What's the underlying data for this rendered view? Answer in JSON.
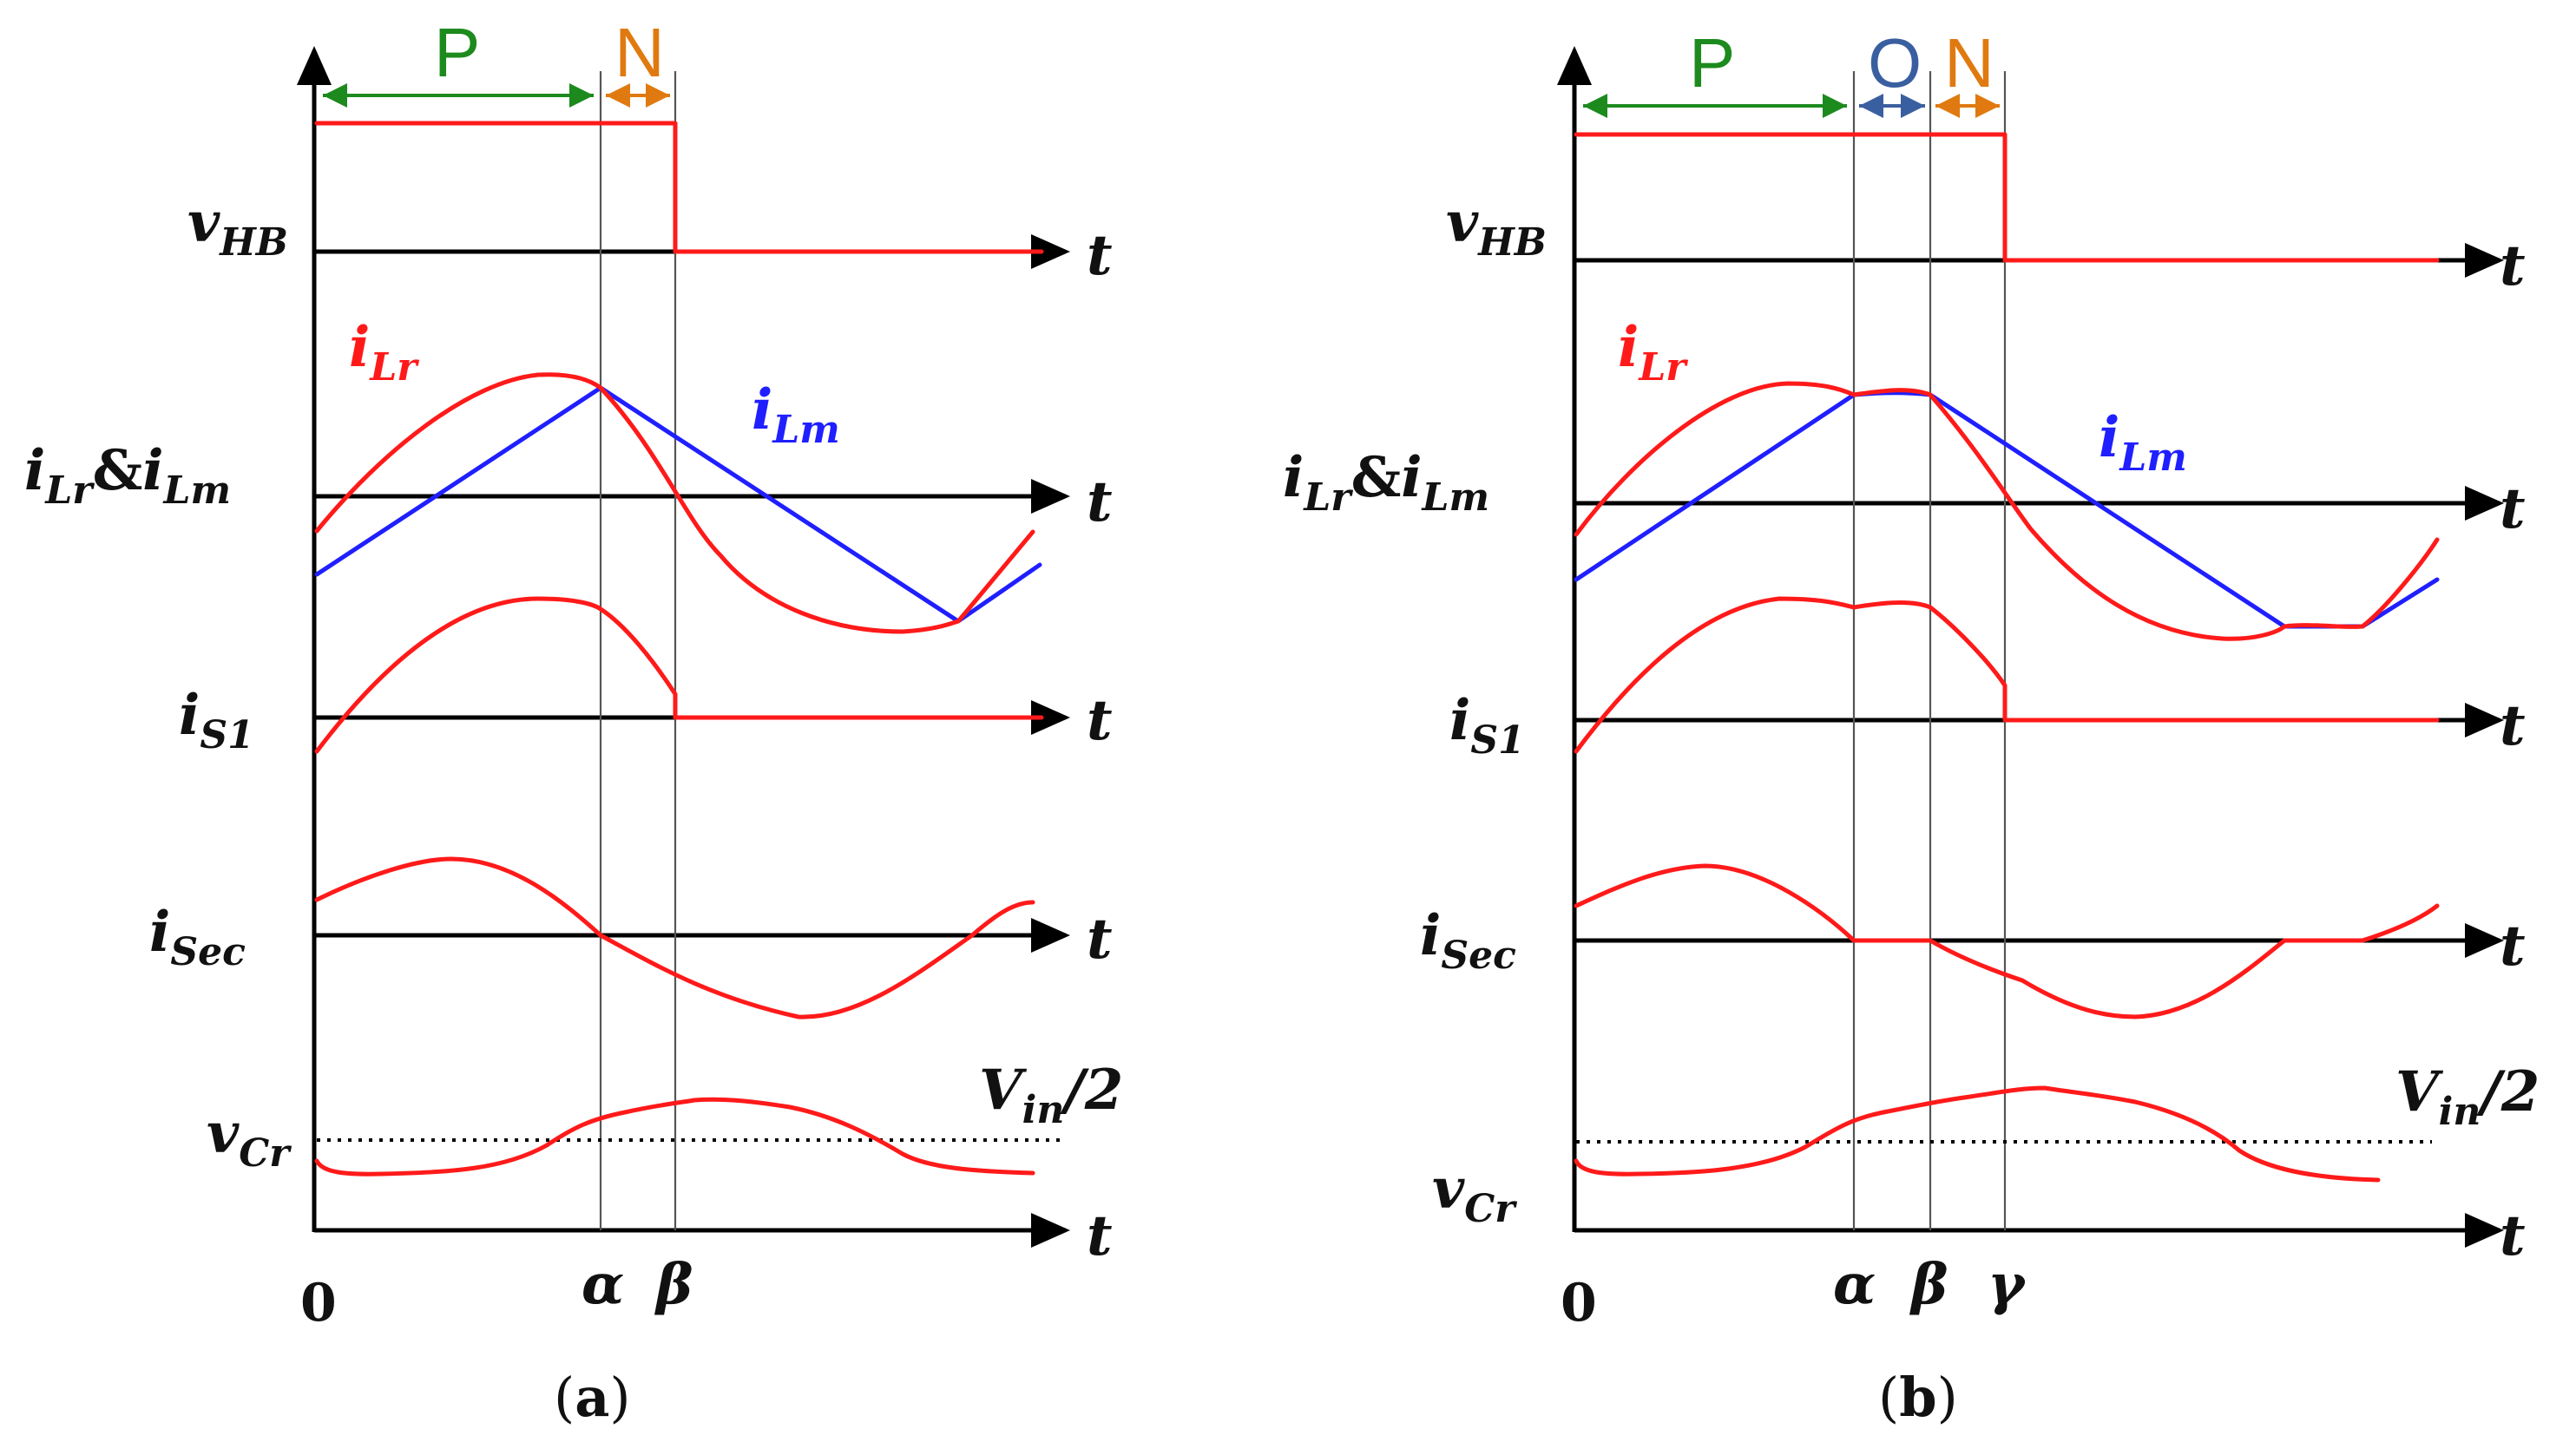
{
  "colors": {
    "current_lr": "#ff1a1a",
    "current_lm": "#1f1fff",
    "phase_p": "#1d8a1d",
    "phase_n": "#e07a10",
    "phase_o": "#3a5fa0",
    "axis": "#000000"
  },
  "axis_labels": {
    "time": "t",
    "origin": "0"
  },
  "signals": {
    "vhb": {
      "main": "v",
      "sub": "HB"
    },
    "ilr_ilm": {
      "main1": "i",
      "sub1": "Lr",
      "amp": "&",
      "main2": "i",
      "sub2": "Lm"
    },
    "is1": {
      "main": "i",
      "sub": "S1"
    },
    "isec": {
      "main": "i",
      "sub": "Sec"
    },
    "vcr": {
      "main": "v",
      "sub": "Cr"
    }
  },
  "curve_labels": {
    "ilr": {
      "main": "i",
      "sub": "Lr"
    },
    "ilm": {
      "main": "i",
      "sub": "Lm"
    }
  },
  "reference": {
    "main": "V",
    "sub": "in",
    "rest": "/2"
  },
  "panels": [
    {
      "id": "a",
      "caption": {
        "open": "(",
        "letter": "a",
        "close": ")"
      },
      "phases": [
        "P",
        "N"
      ],
      "time_markers": [
        "α",
        "β"
      ]
    },
    {
      "id": "b",
      "caption": {
        "open": "(",
        "letter": "b",
        "close": ")"
      },
      "phases": [
        "P",
        "O",
        "N"
      ],
      "time_markers": [
        "α",
        "β",
        "γ"
      ]
    }
  ]
}
